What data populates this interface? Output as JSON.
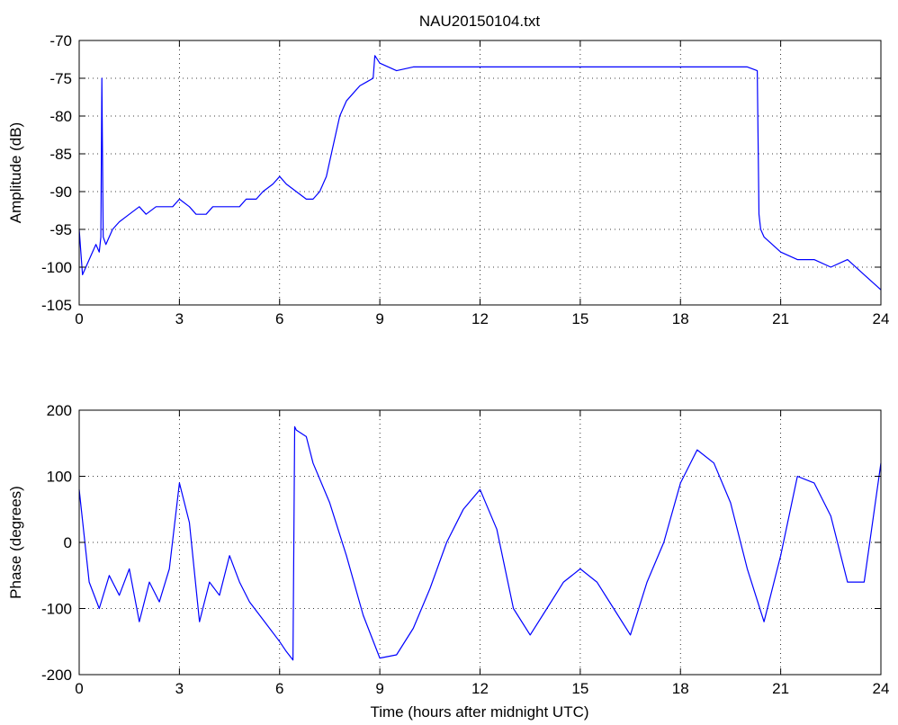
{
  "figure": {
    "title": "NAU20150104.txt",
    "line_color": "#0000ff"
  },
  "chart_data": [
    {
      "type": "line",
      "title": "NAU20150104.txt",
      "xlabel": "",
      "ylabel": "Amplitude (dB)",
      "xlim": [
        0,
        24
      ],
      "ylim": [
        -105,
        -70
      ],
      "xticks": [
        0,
        3,
        6,
        9,
        12,
        15,
        18,
        21,
        24
      ],
      "yticks": [
        -105,
        -100,
        -95,
        -90,
        -85,
        -80,
        -75,
        -70
      ],
      "grid": true,
      "series": [
        {
          "color": "#0000ff",
          "x": [
            0.0,
            0.1,
            0.2,
            0.3,
            0.4,
            0.5,
            0.6,
            0.65,
            0.68,
            0.72,
            0.8,
            1.0,
            1.2,
            1.5,
            1.8,
            2.0,
            2.3,
            2.5,
            2.8,
            3.0,
            3.3,
            3.5,
            3.8,
            4.0,
            4.3,
            4.5,
            4.8,
            5.0,
            5.3,
            5.5,
            5.8,
            6.0,
            6.2,
            6.5,
            6.8,
            7.0,
            7.2,
            7.4,
            7.6,
            7.8,
            8.0,
            8.2,
            8.4,
            8.6,
            8.8,
            8.85,
            9.0,
            9.5,
            10,
            11,
            12,
            13,
            14,
            15,
            16,
            17,
            18,
            19,
            20,
            20.3,
            20.35,
            20.4,
            20.5,
            21,
            21.5,
            22,
            22.5,
            23,
            23.5,
            24.0
          ],
          "y": [
            -95,
            -101,
            -100,
            -99,
            -98,
            -97,
            -98,
            -96,
            -75,
            -96,
            -97,
            -95,
            -94,
            -93,
            -92,
            -93,
            -92,
            -92,
            -92,
            -91,
            -92,
            -93,
            -93,
            -92,
            -92,
            -92,
            -92,
            -91,
            -91,
            -90,
            -89,
            -88,
            -89,
            -90,
            -91,
            -91,
            -90,
            -88,
            -84,
            -80,
            -78,
            -77,
            -76,
            -75.5,
            -75,
            -72,
            -73,
            -74,
            -73.5,
            -73.5,
            -73.5,
            -73.5,
            -73.5,
            -73.5,
            -73.5,
            -73.5,
            -73.5,
            -73.5,
            -73.5,
            -74,
            -93,
            -95,
            -96,
            -98,
            -99,
            -99,
            -100,
            -99,
            -101,
            -103
          ]
        }
      ]
    },
    {
      "type": "line",
      "xlabel": "Time (hours after midnight UTC)",
      "ylabel": "Phase (degrees)",
      "xlim": [
        0,
        24
      ],
      "ylim": [
        -200,
        200
      ],
      "xticks": [
        0,
        3,
        6,
        9,
        12,
        15,
        18,
        21,
        24
      ],
      "yticks": [
        -200,
        -100,
        0,
        100,
        200
      ],
      "grid": true,
      "series": [
        {
          "color": "#0000ff",
          "x": [
            0.0,
            0.3,
            0.6,
            0.9,
            1.2,
            1.5,
            1.8,
            2.1,
            2.4,
            2.7,
            3.0,
            3.3,
            3.6,
            3.9,
            4.2,
            4.5,
            4.8,
            5.1,
            5.4,
            5.7,
            6.0,
            6.2,
            6.4,
            6.45,
            6.5,
            6.8,
            7.0,
            7.5,
            8.0,
            8.5,
            9.0,
            9.5,
            10.0,
            10.5,
            11.0,
            11.5,
            12.0,
            12.5,
            13.0,
            13.5,
            14.0,
            14.5,
            15.0,
            15.5,
            16.0,
            16.5,
            17.0,
            17.5,
            18.0,
            18.5,
            19.0,
            19.5,
            20.0,
            20.5,
            21.0,
            21.5,
            22.0,
            22.5,
            23.0,
            23.5,
            24.0
          ],
          "y": [
            80,
            -60,
            -100,
            -50,
            -80,
            -40,
            -120,
            -60,
            -90,
            -40,
            90,
            30,
            -120,
            -60,
            -80,
            -20,
            -60,
            -90,
            -110,
            -130,
            -150,
            -165,
            -178,
            175,
            170,
            160,
            120,
            60,
            -20,
            -110,
            -175,
            -170,
            -130,
            -70,
            0,
            50,
            80,
            20,
            -100,
            -140,
            -100,
            -60,
            -40,
            -60,
            -100,
            -140,
            -60,
            0,
            90,
            140,
            120,
            60,
            -40,
            -120,
            -20,
            100,
            90,
            40,
            -60,
            -60,
            120
          ]
        }
      ]
    }
  ]
}
